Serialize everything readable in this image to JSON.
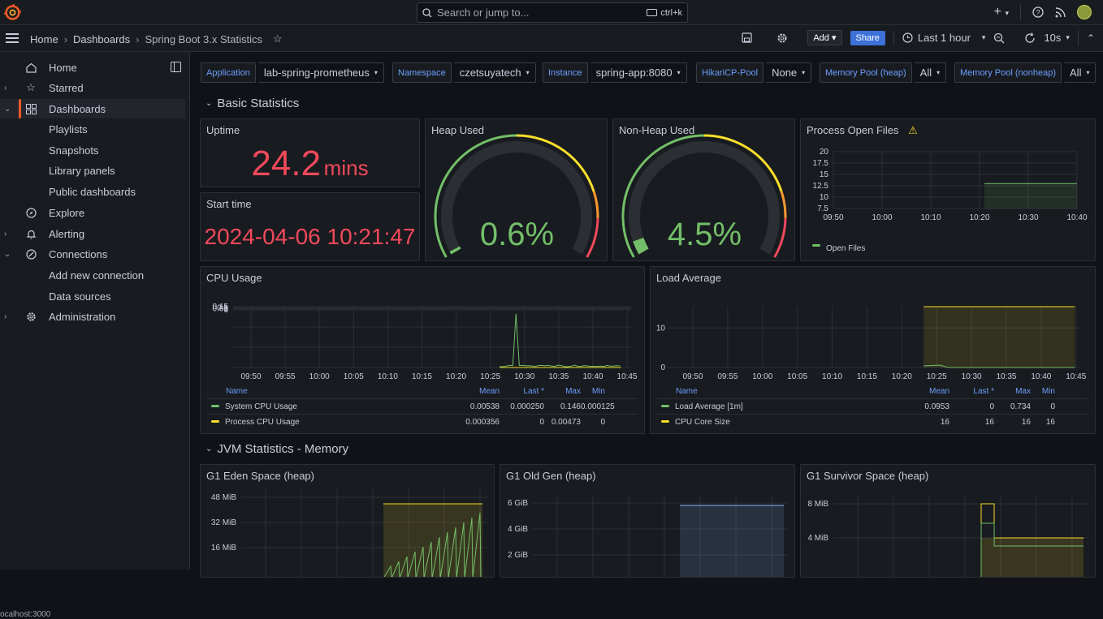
{
  "topbar": {
    "search_placeholder": "Search or jump to...",
    "shortcut": "ctrl+k"
  },
  "breadcrumb": {
    "home": "Home",
    "dashboards": "Dashboards",
    "current": "Spring Boot 3.x Statistics"
  },
  "toolbar": {
    "add": "Add",
    "share": "Share",
    "time_range": "Last 1 hour",
    "refresh": "10s"
  },
  "sidebar": {
    "items": [
      {
        "label": "Home"
      },
      {
        "label": "Starred"
      },
      {
        "label": "Dashboards"
      },
      {
        "label": "Playlists"
      },
      {
        "label": "Snapshots"
      },
      {
        "label": "Library panels"
      },
      {
        "label": "Public dashboards"
      },
      {
        "label": "Explore"
      },
      {
        "label": "Alerting"
      },
      {
        "label": "Connections"
      },
      {
        "label": "Add new connection"
      },
      {
        "label": "Data sources"
      },
      {
        "label": "Administration"
      }
    ],
    "status": "ocalhost:3000"
  },
  "variables": [
    {
      "key": "Application",
      "value": "lab-spring-prometheus"
    },
    {
      "key": "Namespace",
      "value": "czetsuyatech"
    },
    {
      "key": "Instance",
      "value": "spring-app:8080"
    },
    {
      "key": "HikariCP-Pool",
      "value": "None"
    },
    {
      "key": "Memory Pool (heap)",
      "value": "All"
    },
    {
      "key": "Memory Pool (nonheap)",
      "value": "All"
    }
  ],
  "rows": {
    "basic": "Basic Statistics",
    "jvm": "JVM Statistics - Memory"
  },
  "panels": {
    "uptime": {
      "title": "Uptime",
      "value": "24.2",
      "unit": "mins"
    },
    "start": {
      "title": "Start time",
      "value": "2024-04-06 10:21:47"
    },
    "heap": {
      "title": "Heap Used",
      "value": "0.6%",
      "level": 0.006
    },
    "nonheap": {
      "title": "Non-Heap Used",
      "value": "4.5%",
      "level": 0.045
    },
    "files": {
      "title": "Process Open Files",
      "legend": "Open Files"
    },
    "cpu": {
      "title": "CPU Usage",
      "legend_headers": [
        "Name",
        "Mean",
        "Last *",
        "Max",
        "Min"
      ],
      "rows": [
        {
          "name": "System CPU Usage",
          "mean": "0.00538",
          "last": "0.000250",
          "max": "0.146",
          "min": "0.000125"
        },
        {
          "name": "Process CPU Usage",
          "mean": "0.000356",
          "last": "0",
          "max": "0.00473",
          "min": "0"
        }
      ]
    },
    "load": {
      "title": "Load Average",
      "legend_headers": [
        "Name",
        "Mean",
        "Last *",
        "Max",
        "Min"
      ],
      "rows": [
        {
          "name": "Load Average [1m]",
          "mean": "0.0953",
          "last": "0",
          "max": "0.734",
          "min": "0"
        },
        {
          "name": "CPU Core Size",
          "mean": "16",
          "last": "16",
          "max": "16",
          "min": "16"
        }
      ]
    },
    "eden": {
      "title": "G1 Eden Space (heap)"
    },
    "old": {
      "title": "G1 Old Gen (heap)"
    },
    "survivor": {
      "title": "G1 Survivor Space (heap)"
    }
  },
  "colors": {
    "green": "#73bf69",
    "yellow": "#fade2a",
    "red": "#f2495c",
    "blue": "#6e9fff",
    "orange": "#f05a28"
  },
  "chart_data": [
    {
      "type": "line",
      "id": "files",
      "ylim": [
        7.5,
        20
      ],
      "yticks": [
        "20",
        "17.5",
        "15",
        "12.5",
        "10",
        "7.5"
      ],
      "xticks": [
        "09:50",
        "10:00",
        "10:10",
        "10:20",
        "10:30",
        "10:40"
      ],
      "series": [
        {
          "name": "Open Files",
          "x": [
            "10:21",
            "10:45"
          ],
          "values": [
            13,
            13
          ]
        }
      ]
    },
    {
      "type": "line",
      "id": "cpu",
      "ylim": [
        0,
        0.17
      ],
      "yticks": [
        "0.15",
        "0.1",
        "0.05",
        "0"
      ],
      "xticks": [
        "09:50",
        "09:55",
        "10:00",
        "10:05",
        "10:10",
        "10:15",
        "10:20",
        "10:25",
        "10:30",
        "10:35",
        "10:40",
        "10:45"
      ],
      "series": [
        {
          "name": "System CPU Usage",
          "peak": 0.146
        },
        {
          "name": "Process CPU Usage",
          "peak": 0.00473
        }
      ]
    },
    {
      "type": "line",
      "id": "load",
      "ylim": [
        0,
        17
      ],
      "yticks": [
        "10",
        "0"
      ],
      "xticks": [
        "09:50",
        "09:55",
        "10:00",
        "10:05",
        "10:10",
        "10:15",
        "10:20",
        "10:25",
        "10:30",
        "10:35",
        "10:40",
        "10:45"
      ],
      "series": [
        {
          "name": "Load Average [1m]",
          "peak": 0.734
        },
        {
          "name": "CPU Core Size",
          "values": [
            16
          ]
        }
      ]
    },
    {
      "type": "line",
      "id": "eden",
      "yticks": [
        "48 MiB",
        "32 MiB",
        "16 MiB"
      ]
    },
    {
      "type": "line",
      "id": "old",
      "yticks": [
        "6 GiB",
        "4 GiB",
        "2 GiB"
      ]
    },
    {
      "type": "line",
      "id": "survivor",
      "yticks": [
        "8 MiB",
        "4 MiB"
      ]
    }
  ]
}
